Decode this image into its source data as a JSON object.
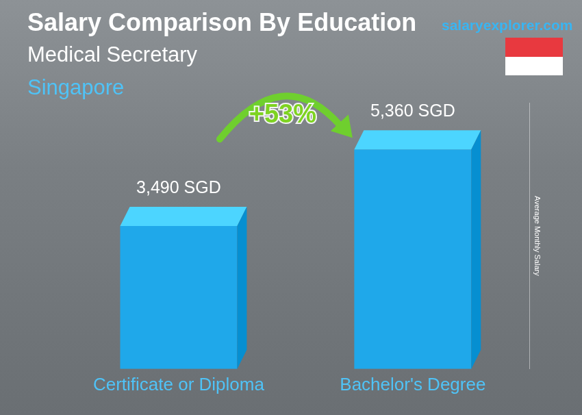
{
  "chart_data": {
    "type": "bar",
    "title": "Salary Comparison By Education",
    "subtitle": "Medical Secretary",
    "location": "Singapore",
    "watermark": "salaryexplorer.com",
    "y_label": "Average Monthly Salary",
    "annotation": "+53%",
    "categories": [
      "Certificate or Diploma",
      "Bachelor's Degree"
    ],
    "values": [
      3490,
      5360
    ],
    "value_labels": [
      "3,490 SGD",
      "5,360 SGD"
    ],
    "data_labels": true,
    "color": "#1fa8ea",
    "ylim": [
      0,
      6500
    ],
    "grid": false,
    "tick_labels": "x"
  }
}
